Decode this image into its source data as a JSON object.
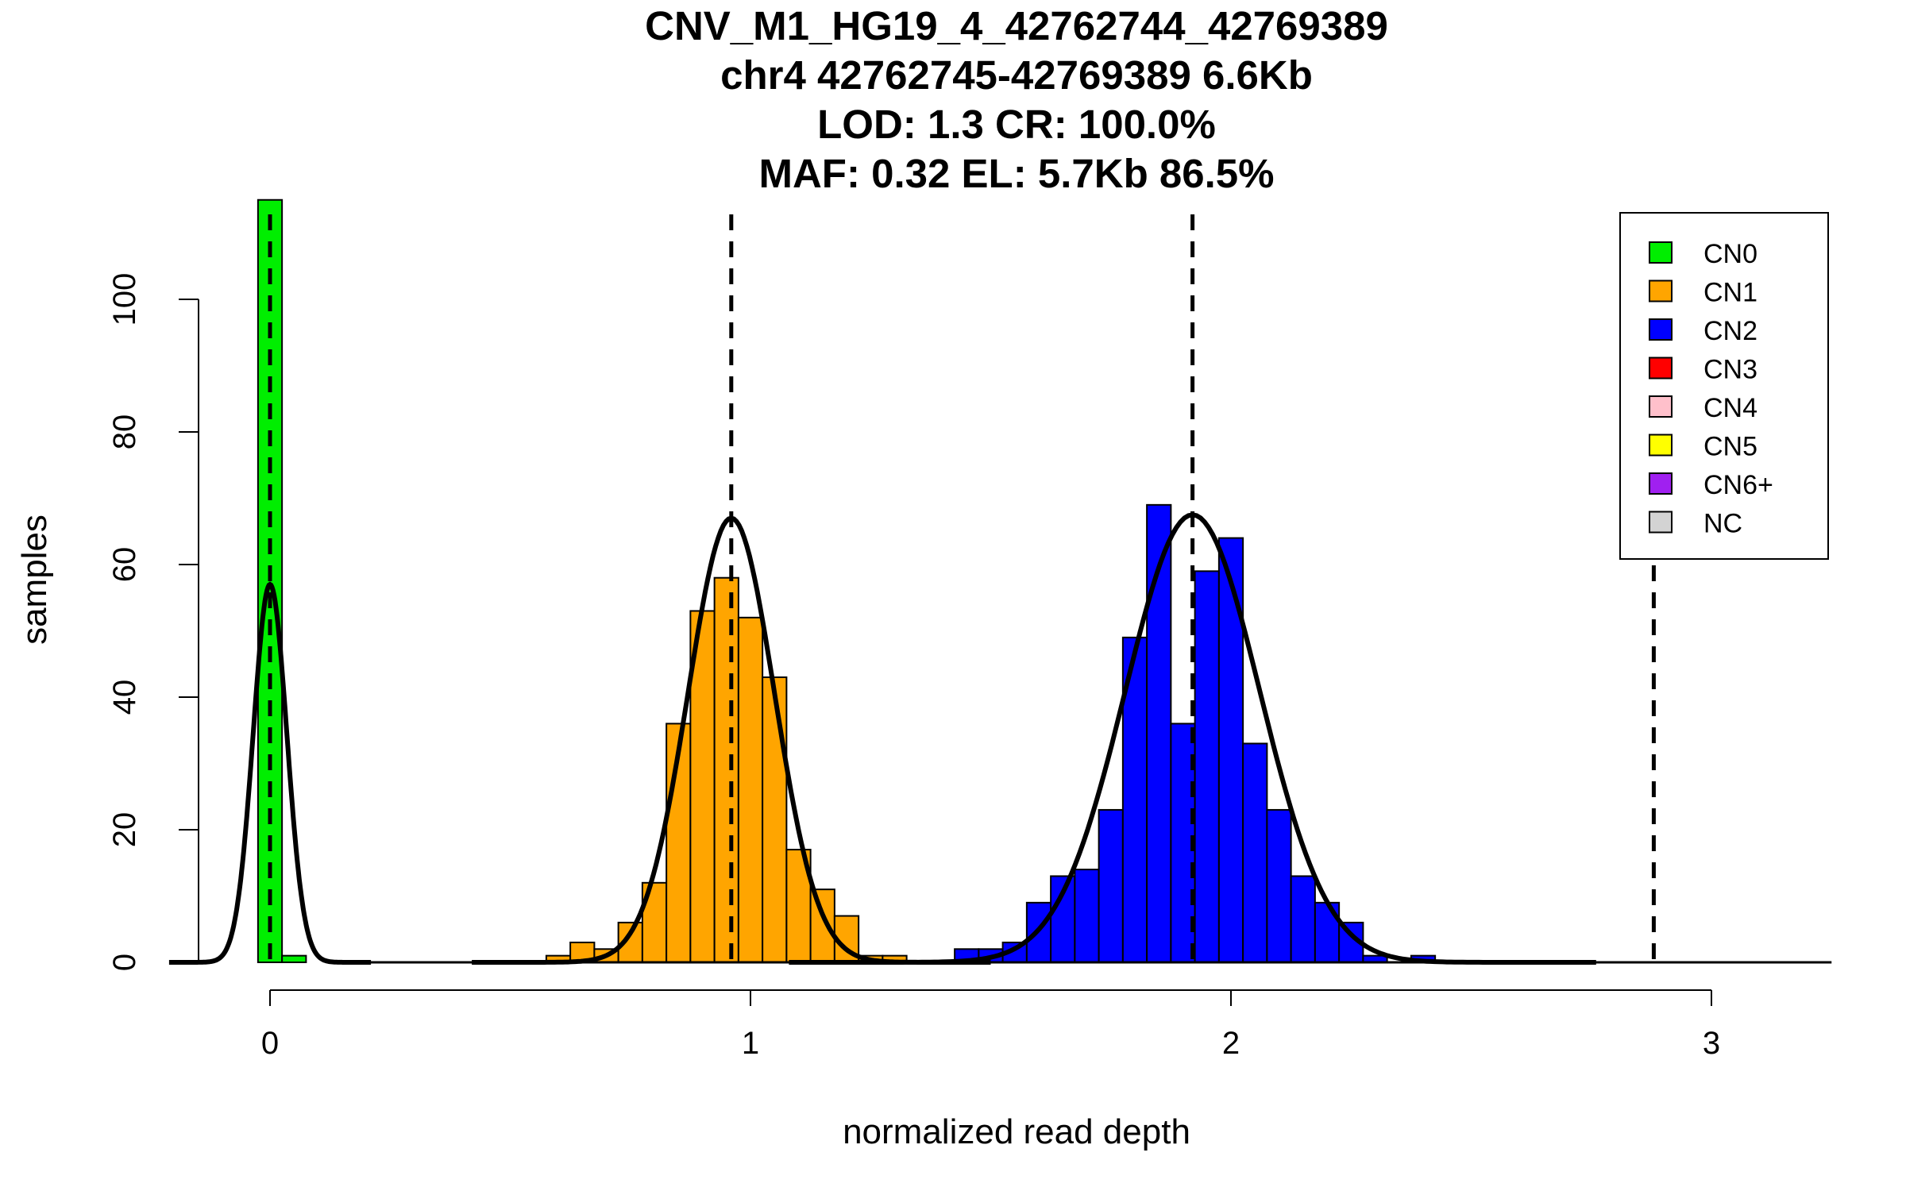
{
  "chart_data": {
    "type": "bar",
    "title_lines": [
      "CNV_M1_HG19_4_42762744_42769389",
      "chr4 42762745-42769389 6.6Kb",
      "LOD: 1.3 CR: 100.0%",
      "MAF: 0.32 EL: 5.7Kb 86.5%"
    ],
    "xlabel": "normalized read depth",
    "ylabel": "samples",
    "xlim": [
      -0.2,
      3.25
    ],
    "ylim": [
      0,
      115
    ],
    "x_ticks": [
      0,
      1,
      2,
      3
    ],
    "x_tick_labels": [
      "0",
      "1",
      "2",
      "3"
    ],
    "y_ticks": [
      0,
      20,
      40,
      60,
      80,
      100
    ],
    "y_tick_labels": [
      "0",
      "20",
      "40",
      "60",
      "80",
      "100"
    ],
    "bin_width": 0.05,
    "series": [
      {
        "name": "CN0",
        "color": "#00ee00",
        "bins": [
          {
            "x0": -0.025,
            "count": 115
          },
          {
            "x0": 0.025,
            "count": 1
          }
        ]
      },
      {
        "name": "CN1",
        "color": "#ffa500",
        "bins": [
          {
            "x0": 0.575,
            "count": 1
          },
          {
            "x0": 0.625,
            "count": 3
          },
          {
            "x0": 0.675,
            "count": 2
          },
          {
            "x0": 0.725,
            "count": 6
          },
          {
            "x0": 0.775,
            "count": 12
          },
          {
            "x0": 0.825,
            "count": 36
          },
          {
            "x0": 0.875,
            "count": 53
          },
          {
            "x0": 0.925,
            "count": 58
          },
          {
            "x0": 0.975,
            "count": 52
          },
          {
            "x0": 1.025,
            "count": 43
          },
          {
            "x0": 1.075,
            "count": 17
          },
          {
            "x0": 1.125,
            "count": 11
          },
          {
            "x0": 1.175,
            "count": 7
          },
          {
            "x0": 1.225,
            "count": 1
          },
          {
            "x0": 1.275,
            "count": 1
          }
        ]
      },
      {
        "name": "CN2",
        "color": "#0000ff",
        "bins": [
          {
            "x0": 1.425,
            "count": 2
          },
          {
            "x0": 1.475,
            "count": 2
          },
          {
            "x0": 1.525,
            "count": 3
          },
          {
            "x0": 1.575,
            "count": 9
          },
          {
            "x0": 1.625,
            "count": 13
          },
          {
            "x0": 1.675,
            "count": 14
          },
          {
            "x0": 1.725,
            "count": 23
          },
          {
            "x0": 1.775,
            "count": 49
          },
          {
            "x0": 1.825,
            "count": 69
          },
          {
            "x0": 1.875,
            "count": 36
          },
          {
            "x0": 1.925,
            "count": 59
          },
          {
            "x0": 1.975,
            "count": 64
          },
          {
            "x0": 2.025,
            "count": 33
          },
          {
            "x0": 2.075,
            "count": 23
          },
          {
            "x0": 2.125,
            "count": 13
          },
          {
            "x0": 2.175,
            "count": 9
          },
          {
            "x0": 2.225,
            "count": 6
          },
          {
            "x0": 2.275,
            "count": 1
          },
          {
            "x0": 2.375,
            "count": 1
          }
        ]
      }
    ],
    "fitted_curves": [
      {
        "component": "CN0",
        "mean": 0.0,
        "sd": 0.035,
        "peak": 57
      },
      {
        "component": "CN1",
        "mean": 0.96,
        "sd": 0.09,
        "peak": 67
      },
      {
        "component": "CN2",
        "mean": 1.92,
        "sd": 0.14,
        "peak": 67.5
      }
    ],
    "dashed_lines_x": [
      0.0,
      0.96,
      1.92,
      2.88
    ],
    "legend": {
      "position": "top-right",
      "entries": [
        {
          "label": "CN0",
          "color": "#00ee00"
        },
        {
          "label": "CN1",
          "color": "#ffa500"
        },
        {
          "label": "CN2",
          "color": "#0000ff"
        },
        {
          "label": "CN3",
          "color": "#ff0000"
        },
        {
          "label": "CN4",
          "color": "#ffc0cb"
        },
        {
          "label": "CN5",
          "color": "#ffff00"
        },
        {
          "label": "CN6+",
          "color": "#a020f0"
        },
        {
          "label": "NC",
          "color": "#d3d3d3"
        }
      ]
    },
    "grid": false
  }
}
